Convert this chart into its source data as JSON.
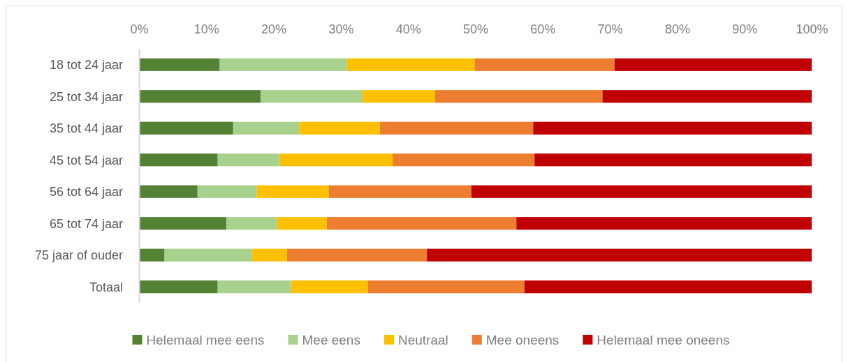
{
  "chart_data": {
    "type": "bar",
    "orientation": "horizontal",
    "stacked": true,
    "categories": [
      "18 tot 24 jaar",
      "25 tot 34 jaar",
      "35 tot 44 jaar",
      "45 tot 54 jaar",
      "56 tot 64 jaar",
      "65 tot 74 jaar",
      "75 jaar of ouder",
      "Totaal"
    ],
    "series": [
      {
        "name": "Helemaal mee eens",
        "color": "#548235",
        "values": [
          12.0,
          18.1,
          14.0,
          11.7,
          8.7,
          13.0,
          3.8,
          11.7
        ]
      },
      {
        "name": "Mee eens",
        "color": "#a9d18e",
        "values": [
          18.9,
          15.1,
          9.8,
          9.2,
          8.8,
          7.5,
          13.0,
          10.9
        ]
      },
      {
        "name": "Neutraal",
        "color": "#ffc000",
        "values": [
          19.0,
          10.8,
          12.0,
          16.8,
          10.7,
          7.4,
          5.2,
          11.4
        ]
      },
      {
        "name": "Mee oneens",
        "color": "#ed7d31",
        "values": [
          20.8,
          24.9,
          22.8,
          21.1,
          21.2,
          28.2,
          20.8,
          23.3
        ]
      },
      {
        "name": "Helemaal mee oneens",
        "color": "#c00000",
        "values": [
          29.3,
          31.1,
          41.4,
          41.2,
          50.6,
          43.9,
          57.2,
          42.7
        ]
      }
    ],
    "xlim": [
      0,
      100
    ],
    "xticks": [
      {
        "value": 0,
        "label": "0%"
      },
      {
        "value": 10,
        "label": "10%"
      },
      {
        "value": 20,
        "label": "20%"
      },
      {
        "value": 30,
        "label": "30%"
      },
      {
        "value": 40,
        "label": "40%"
      },
      {
        "value": 50,
        "label": "50%"
      },
      {
        "value": 60,
        "label": "60%"
      },
      {
        "value": 70,
        "label": "70%"
      },
      {
        "value": 80,
        "label": "80%"
      },
      {
        "value": 90,
        "label": "90%"
      },
      {
        "value": 100,
        "label": "100%"
      }
    ],
    "legend": "bottom"
  }
}
